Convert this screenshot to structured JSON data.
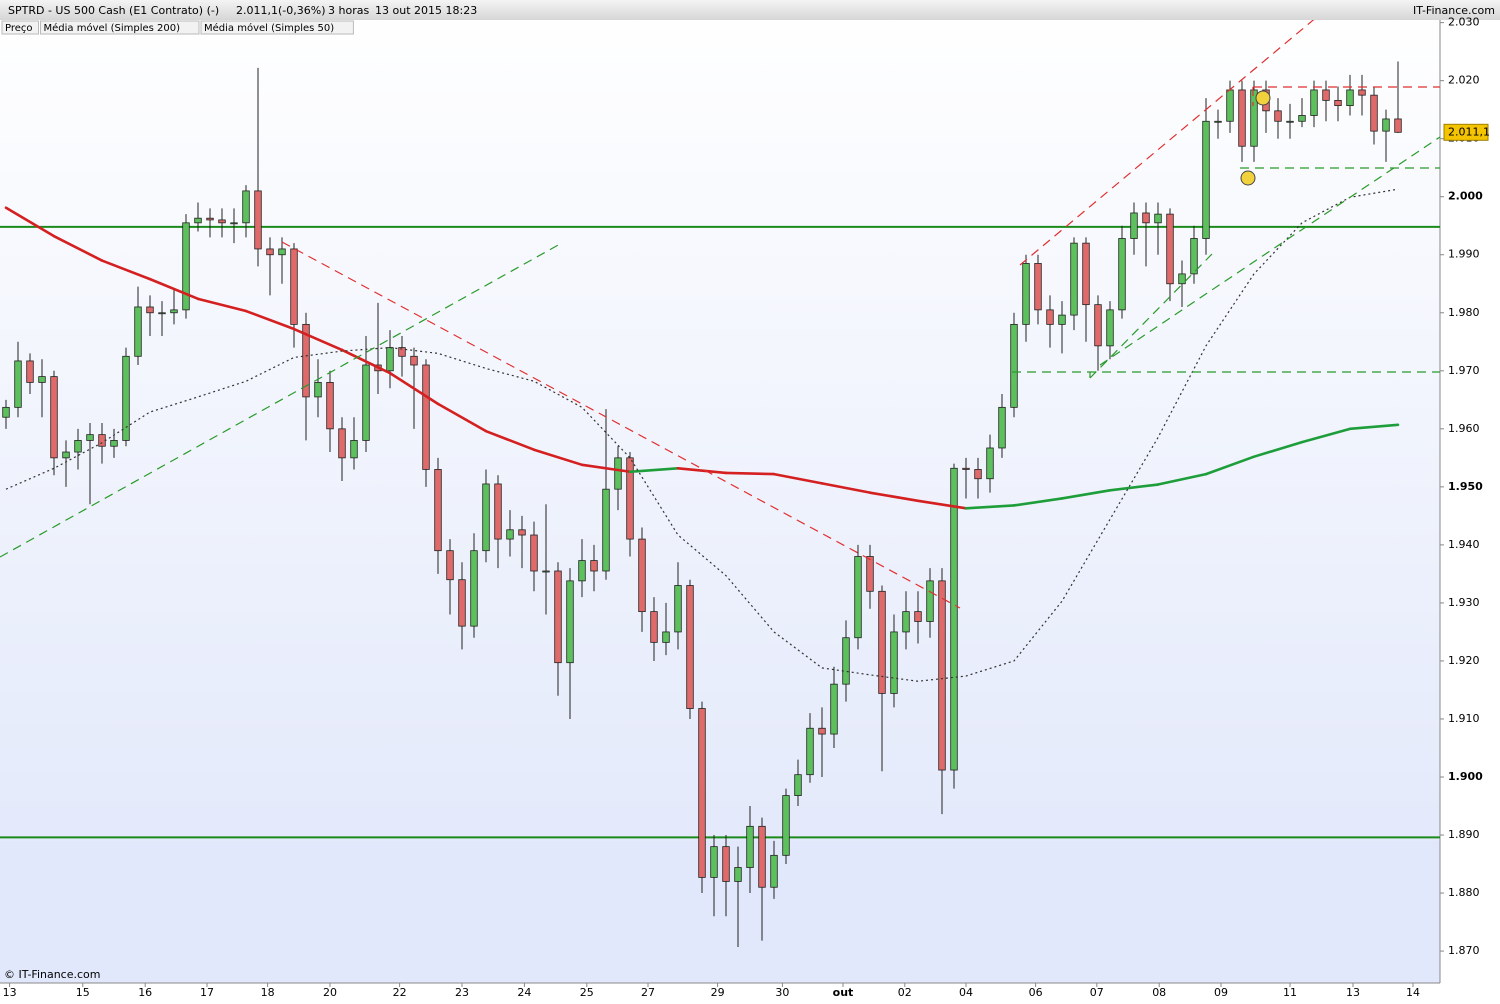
{
  "header": {
    "symbol": "SPTRD - US 500 Cash (E1 Contrato) (-)",
    "last_price": "2.011,1",
    "change": "(-0,36%)",
    "period": "3 horas",
    "datetime": "13 out 2015 18:23",
    "brand": "IT-Finance.com",
    "footer": "© IT-Finance.com"
  },
  "chart_data": {
    "type": "candlestick",
    "legend": [
      "Preço"
    ],
    "up_color": "#5cc15c",
    "down_color": "#e06a6a",
    "open": [
      1962,
      1963.7,
      1971.7,
      1968,
      1969,
      1955,
      1956,
      1958,
      1959,
      1957,
      1958,
      1972.5,
      1981,
      1980,
      1980,
      1980.5,
      1995.5,
      1996.3,
      1996,
      1995.5,
      1995.5,
      2001,
      1991,
      1990,
      1991,
      1978,
      1965.5,
      1968,
      1960,
      1955,
      1958,
      1971,
      1970,
      1974,
      1972.5,
      1971,
      1953,
      1939,
      1934,
      1926,
      1939,
      1950.5,
      1941,
      1942.6,
      1941.7,
      1935.5,
      1935.5,
      1919.7,
      1933.8,
      1937.3,
      1935.5,
      1949.6,
      1955,
      1941,
      1928.5,
      1923.2,
      1925,
      1933,
      1911.8,
      1882.7,
      1888,
      1882,
      1884.4,
      1891.5,
      1881,
      1886.5,
      1896.8,
      1900.4,
      1908.4,
      1907.4,
      1916,
      1924,
      1938,
      1932,
      1914.4,
      1925,
      1928.5,
      1926.8,
      1933.8,
      1901.2,
      1953.2,
      1953,
      1951.4,
      1956.7,
      1963.7,
      1978,
      1988.5,
      1980.5,
      1978,
      1979.6,
      1992,
      1981.4,
      1974.3,
      1980.5,
      1992.8,
      1997.2,
      1995.5,
      1997,
      1985,
      1986.7,
      1992.8,
      2013,
      2013,
      2018.4,
      2008.7,
      2018.4,
      2014.8,
      2013,
      2013,
      2014,
      2018.4,
      2016.6,
      2015.7,
      2018.4,
      2017.5,
      2011.3,
      2013.4
    ],
    "high": [
      1965,
      1975,
      1973,
      1972,
      1970,
      1958,
      1960,
      1961,
      1961,
      1960,
      1974,
      1984.5,
      1983,
      1982,
      1984,
      1997,
      1999,
      1998,
      1998,
      1998,
      2002,
      2022.2,
      1993,
      1993,
      1992,
      1980,
      1972,
      1970,
      1962,
      1962,
      1976,
      1981.7,
      1977,
      1976,
      1974,
      1972,
      1955,
      1941,
      1937,
      1942,
      1953,
      1952,
      1946,
      1945,
      1944,
      1947,
      1937,
      1936,
      1941,
      1940,
      1963.4,
      1957,
      1956,
      1943,
      1931,
      1930,
      1937,
      1934,
      1913,
      1890,
      1890,
      1888,
      1895,
      1893,
      1889,
      1898,
      1903,
      1911,
      1912,
      1919,
      1927,
      1940,
      1940,
      1933,
      1928,
      1932,
      1932,
      1936,
      1936,
      1954,
      1955,
      1955,
      1959,
      1966,
      1980,
      1990,
      1990,
      1983,
      1982,
      1993,
      1993,
      1983,
      1982,
      1995,
      1999,
      1999,
      1999,
      1998,
      1989,
      1995,
      2017,
      2015,
      2020,
      2020,
      2020,
      2020,
      2017,
      2016,
      2017,
      2020,
      2020,
      2019,
      2021,
      2021,
      2019,
      2015,
      2023.3
    ],
    "low": [
      1960,
      1962,
      1966,
      1962,
      1952,
      1950,
      1953,
      1947,
      1954,
      1955,
      1957,
      1971,
      1976,
      1976,
      1978,
      1979,
      1994,
      1993,
      1993,
      1992,
      1993,
      1988,
      1983,
      1985,
      1974,
      1958,
      1962,
      1956,
      1951,
      1953,
      1956,
      1966,
      1967,
      1969,
      1960,
      1950,
      1935,
      1928,
      1922,
      1924,
      1937,
      1936,
      1938,
      1936,
      1932,
      1928,
      1914,
      1910,
      1931,
      1932,
      1934,
      1946,
      1938,
      1925,
      1920,
      1921,
      1922,
      1910,
      1880,
      1876,
      1876,
      1870.7,
      1880,
      1871.8,
      1879,
      1885,
      1895,
      1899,
      1900,
      1905,
      1913,
      1922,
      1929,
      1901,
      1912,
      1922,
      1923,
      1924,
      1893.6,
      1898,
      1948,
      1948,
      1949,
      1955,
      1962,
      1975,
      1978,
      1974,
      1973,
      1977,
      1975,
      1970,
      1972,
      1979,
      1990,
      1988,
      1990,
      1982,
      1981,
      1985,
      1990,
      2010,
      2011,
      2006,
      2006,
      2011,
      2010,
      2010,
      2012,
      2012,
      2013,
      2013,
      2014,
      2014,
      2009,
      2006,
      2011
    ],
    "close": [
      1963.7,
      1971.7,
      1968,
      1969,
      1955,
      1956,
      1958,
      1959,
      1957,
      1958,
      1972.5,
      1981,
      1980,
      1980,
      1980.5,
      1995.5,
      1996.3,
      1996,
      1995.5,
      1995.5,
      2001,
      1991,
      1990,
      1991,
      1978,
      1965.5,
      1968,
      1960,
      1955,
      1958,
      1971,
      1970,
      1974,
      1972.5,
      1971,
      1953,
      1939,
      1934,
      1926,
      1939,
      1950.5,
      1941,
      1942.6,
      1941.7,
      1935.5,
      1935.5,
      1919.7,
      1933.8,
      1937.3,
      1935.5,
      1949.6,
      1955,
      1941,
      1928.5,
      1923.2,
      1925,
      1933,
      1911.8,
      1882.7,
      1888,
      1882,
      1884.4,
      1891.5,
      1881,
      1886.5,
      1896.8,
      1900.4,
      1908.4,
      1907.4,
      1916,
      1924,
      1938,
      1932,
      1914.4,
      1925,
      1928.5,
      1926.8,
      1933.8,
      1901.2,
      1953.2,
      1953,
      1951.4,
      1956.7,
      1963.7,
      1978,
      1988.5,
      1980.5,
      1978,
      1979.6,
      1992,
      1981.4,
      1974.3,
      1980.5,
      1992.8,
      1997.2,
      1995.5,
      1997,
      1985,
      1986.7,
      1992.8,
      2013,
      2013,
      2018.4,
      2008.7,
      2018.4,
      2014.8,
      2013,
      2013,
      2014,
      2018.4,
      2016.6,
      2015.7,
      2018.4,
      2017.5,
      2011.3,
      2013.4,
      2011.1
    ],
    "lines": [
      {
        "name": "Média móvel (Simples 200)",
        "style": "solid",
        "rising_color": "#1e9e3a",
        "falling_color": "#d42020",
        "x": [
          0,
          4,
          8,
          12,
          16,
          20,
          24,
          28,
          32,
          36,
          40,
          44,
          48,
          52,
          56,
          60,
          64,
          68,
          72,
          76,
          80,
          84,
          88,
          92,
          96,
          100,
          104,
          108,
          112,
          116
        ],
        "values": [
          1998.1,
          1993.2,
          1989,
          1985.8,
          1982.4,
          1980.3,
          1977.2,
          1973.6,
          1969.6,
          1964.3,
          1959.6,
          1956.4,
          1953.8,
          1952.6,
          1953.2,
          1952.4,
          1952.2,
          1950.6,
          1949,
          1947.6,
          1946.3,
          1946.8,
          1948,
          1949.4,
          1950.4,
          1952.2,
          1955.2,
          1957.7,
          1960,
          1960.7
        ]
      },
      {
        "name": "Média móvel (Simples 50)",
        "style": "dotted",
        "color": "#333333",
        "x": [
          0,
          4,
          8,
          12,
          16,
          20,
          24,
          28,
          32,
          36,
          40,
          44,
          48,
          52,
          56,
          60,
          64,
          68,
          72,
          76,
          80,
          84,
          88,
          92,
          96,
          100,
          104,
          108,
          112,
          116
        ],
        "values": [
          1949.6,
          1953.2,
          1957.6,
          1962.9,
          1965.5,
          1968.2,
          1972.3,
          1973.4,
          1974,
          1973,
          1970.4,
          1968.2,
          1963.7,
          1955,
          1941.7,
          1934.7,
          1925,
          1918.8,
          1917.6,
          1916.5,
          1917.4,
          1920,
          1930.3,
          1944.4,
          1958.5,
          1974.3,
          1986.7,
          1995.5,
          1999.9,
          2001.3
        ]
      }
    ],
    "hlines": [
      1994.8,
      1889.6
    ],
    "hline_color": "#1a8a1a",
    "ylim": [
      1864.5,
      2033.9
    ],
    "yticks": [
      {
        "value": 1870,
        "label": "1.870"
      },
      {
        "value": 1880,
        "label": "1.880"
      },
      {
        "value": 1890,
        "label": "1.890"
      },
      {
        "value": 1900,
        "label": "1.900"
      },
      {
        "value": 1910,
        "label": "1.910"
      },
      {
        "value": 1920,
        "label": "1.920"
      },
      {
        "value": 1930,
        "label": "1.930"
      },
      {
        "value": 1940,
        "label": "1.940"
      },
      {
        "value": 1950,
        "label": "1.950"
      },
      {
        "value": 1960,
        "label": "1.960"
      },
      {
        "value": 1970,
        "label": "1.970"
      },
      {
        "value": 1980,
        "label": "1.980"
      },
      {
        "value": 1990,
        "label": "1.990"
      },
      {
        "value": 2000,
        "label": "2.000"
      },
      {
        "value": 2010,
        "label": "2.010"
      },
      {
        "value": 2020,
        "label": "2.020"
      },
      {
        "value": 2030,
        "label": "2.030"
      }
    ],
    "xlim": [
      -0.5,
      119.5
    ],
    "xticks": [
      {
        "value": 0.3,
        "label": "13"
      },
      {
        "value": 6.4,
        "label": "15"
      },
      {
        "value": 11.6,
        "label": "16"
      },
      {
        "value": 16.75,
        "label": "17"
      },
      {
        "value": 21.8,
        "label": "18"
      },
      {
        "value": 27,
        "label": "20"
      },
      {
        "value": 32.8,
        "label": "22"
      },
      {
        "value": 38,
        "label": "23"
      },
      {
        "value": 43.2,
        "label": "24"
      },
      {
        "value": 48.4,
        "label": "25"
      },
      {
        "value": 53.5,
        "label": "27"
      },
      {
        "value": 59.3,
        "label": "29"
      },
      {
        "value": 64.7,
        "label": "30"
      },
      {
        "value": 69.75,
        "label": "out"
      },
      {
        "value": 74.9,
        "label": "02"
      },
      {
        "value": 80,
        "label": "04"
      },
      {
        "value": 85.8,
        "label": "06"
      },
      {
        "value": 90.9,
        "label": "07"
      },
      {
        "value": 96.1,
        "label": "08"
      },
      {
        "value": 101.25,
        "label": "09"
      },
      {
        "value": 107,
        "label": "11"
      },
      {
        "value": 112.25,
        "label": "13"
      },
      {
        "value": 117.25,
        "label": "14"
      }
    ]
  }
}
